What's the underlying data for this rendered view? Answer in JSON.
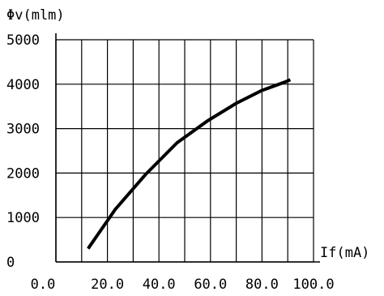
{
  "chart_data": {
    "type": "line",
    "ylabel": "Φv(mlm)",
    "xlabel": "If(mA)",
    "xlim": [
      0,
      100
    ],
    "ylim": [
      0,
      5000
    ],
    "x_tick_labels": [
      "0.0",
      "20.0",
      "40.0",
      "60.0",
      "80.0",
      "100.0"
    ],
    "y_tick_labels": [
      "0",
      "1000",
      "2000",
      "3000",
      "4000",
      "5000"
    ],
    "grid": true,
    "series": [
      {
        "x": [
          12.5,
          23,
          35,
          47,
          59,
          70,
          80,
          89,
          91
        ],
        "y": [
          300,
          1180,
          1980,
          2680,
          3180,
          3570,
          3860,
          4050,
          4100
        ]
      }
    ]
  }
}
